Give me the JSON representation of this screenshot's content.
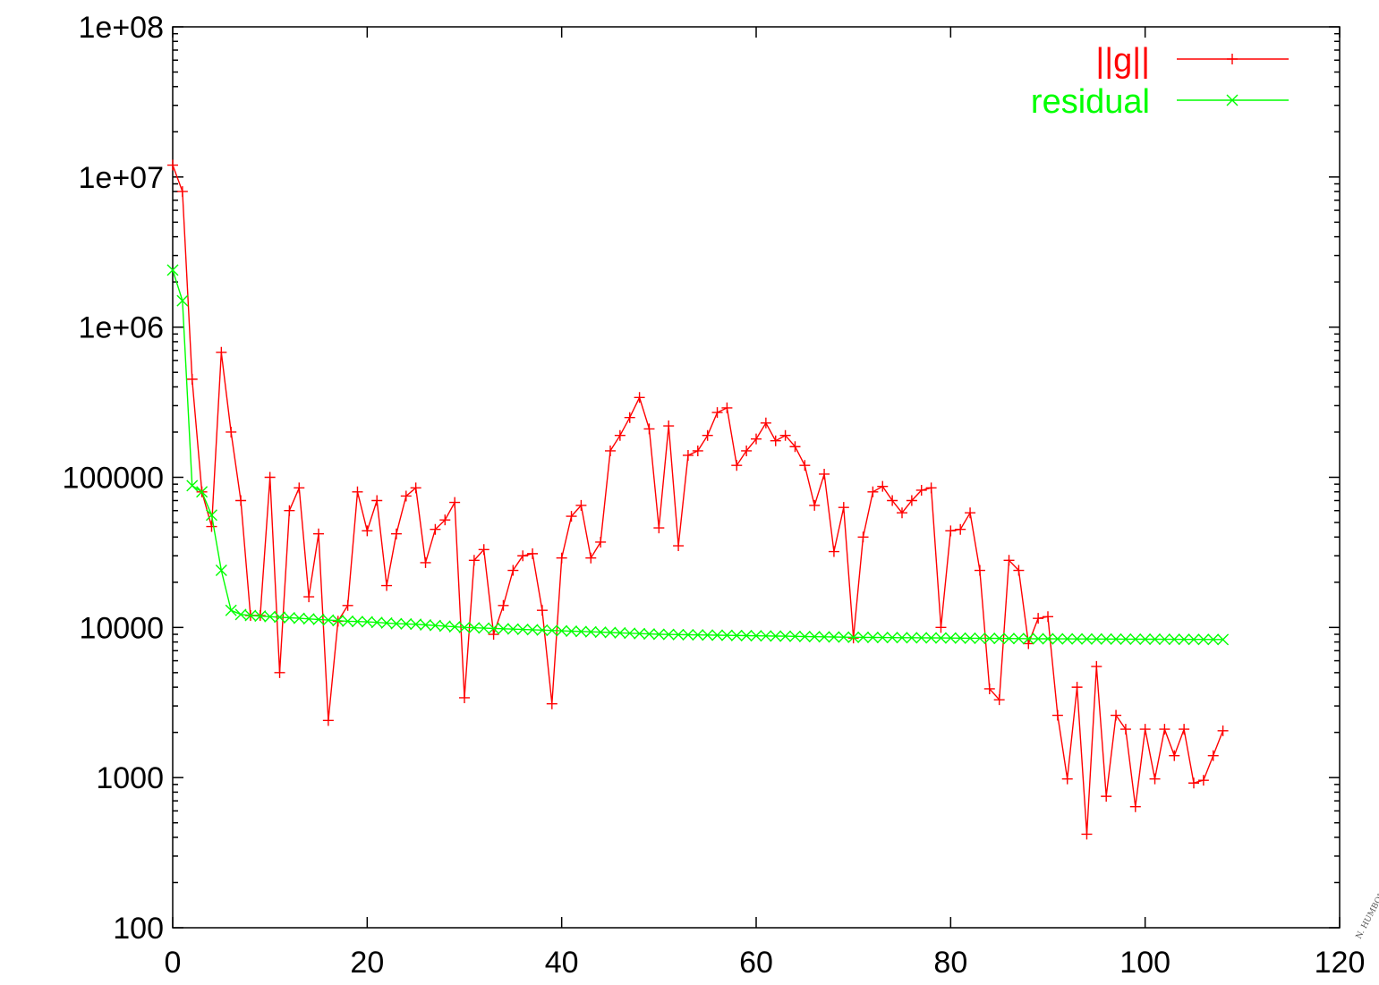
{
  "chart_data": {
    "type": "line",
    "title": "",
    "xlabel": "",
    "ylabel": "",
    "xlim": [
      0,
      120
    ],
    "ylim": [
      100,
      100000000
    ],
    "yscale": "log",
    "grid": false,
    "legend_position": "top-right",
    "x_ticks": [
      "0",
      "20",
      "40",
      "60",
      "80",
      "100",
      "120"
    ],
    "y_ticks": [
      "100",
      "1000",
      "10000",
      "100000",
      "1e+06",
      "1e+07",
      "1e+08"
    ],
    "series": [
      {
        "name": "||g||",
        "color": "#ff0000",
        "marker": "plus",
        "x": [
          0,
          1,
          2,
          3,
          4,
          5,
          6,
          7,
          8,
          9,
          10,
          11,
          12,
          13,
          14,
          15,
          16,
          17,
          18,
          19,
          20,
          21,
          22,
          23,
          24,
          25,
          26,
          27,
          28,
          29,
          30,
          31,
          32,
          33,
          34,
          35,
          36,
          37,
          38,
          39,
          40,
          41,
          42,
          43,
          44,
          45,
          46,
          47,
          48,
          49,
          50,
          51,
          52,
          53,
          54,
          55,
          56,
          57,
          58,
          59,
          60,
          61,
          62,
          63,
          64,
          65,
          66,
          67,
          68,
          69,
          70,
          71,
          72,
          73,
          74,
          75,
          76,
          77,
          78,
          79,
          80,
          81,
          82,
          83,
          84,
          85,
          86,
          87,
          88,
          89,
          90,
          91,
          92,
          93,
          94,
          95,
          96,
          97,
          98,
          99,
          100,
          101,
          102,
          103,
          104,
          105,
          106,
          107,
          108
        ],
        "y": [
          12000000,
          8000000,
          450000,
          80000,
          47000,
          680000,
          200000,
          70000,
          12000,
          12000,
          100000,
          5000,
          60000,
          85000,
          16000,
          42000,
          2400,
          11000,
          14000,
          80000,
          44000,
          70000,
          19000,
          42000,
          75000,
          85000,
          27000,
          45000,
          52000,
          68000,
          3400,
          28000,
          33000,
          9000,
          14000,
          24000,
          30000,
          31000,
          13000,
          3100,
          29000,
          55000,
          65000,
          29000,
          37000,
          150000,
          190000,
          250000,
          340000,
          210000,
          46000,
          220000,
          35000,
          140000,
          150000,
          190000,
          270000,
          290000,
          120000,
          150000,
          180000,
          230000,
          175000,
          190000,
          160000,
          120000,
          65000,
          105000,
          32000,
          63000,
          8500,
          40000,
          80000,
          87000,
          70000,
          58000,
          70000,
          82000,
          85000,
          10000,
          44000,
          45000,
          58000,
          24000,
          3900,
          3300,
          28000,
          24000,
          7800,
          11500,
          11800,
          2600,
          980,
          4000,
          420,
          5500,
          750,
          2600,
          2100,
          640,
          2100,
          980,
          2100,
          1400,
          2100,
          920,
          960,
          1400,
          2050
        ]
      },
      {
        "name": "residual",
        "color": "#00ff00",
        "marker": "x",
        "x": [
          0,
          1,
          2,
          3,
          4,
          5,
          6,
          7,
          8,
          9,
          10,
          11,
          12,
          13,
          14,
          15,
          16,
          17,
          18,
          19,
          20,
          21,
          22,
          23,
          24,
          25,
          26,
          27,
          28,
          29,
          30,
          31,
          32,
          33,
          34,
          35,
          36,
          37,
          38,
          39,
          40,
          41,
          42,
          43,
          44,
          45,
          46,
          47,
          48,
          49,
          50,
          51,
          52,
          53,
          54,
          55,
          56,
          57,
          58,
          59,
          60,
          61,
          62,
          63,
          64,
          65,
          66,
          67,
          68,
          69,
          70,
          71,
          72,
          73,
          74,
          75,
          76,
          77,
          78,
          79,
          80,
          81,
          82,
          83,
          84,
          85,
          86,
          87,
          88,
          89,
          90,
          91,
          92,
          93,
          94,
          95,
          96,
          97,
          98,
          99,
          100,
          101,
          102,
          103,
          104,
          105,
          106,
          107,
          108
        ],
        "y": [
          2400000,
          1500000,
          88000,
          80000,
          56000,
          24000,
          13000,
          12200,
          12000,
          11900,
          11800,
          11700,
          11600,
          11500,
          11400,
          11300,
          11200,
          11100,
          11000,
          10950,
          10900,
          10800,
          10700,
          10600,
          10550,
          10500,
          10400,
          10300,
          10200,
          10100,
          10000,
          9950,
          9900,
          9850,
          9800,
          9750,
          9700,
          9650,
          9600,
          9550,
          9500,
          9450,
          9400,
          9350,
          9300,
          9250,
          9200,
          9150,
          9100,
          9050,
          9000,
          8980,
          8960,
          8940,
          8920,
          8900,
          8880,
          8860,
          8840,
          8820,
          8800,
          8780,
          8760,
          8740,
          8720,
          8700,
          8680,
          8660,
          8640,
          8620,
          8600,
          8590,
          8580,
          8570,
          8560,
          8550,
          8540,
          8530,
          8520,
          8510,
          8500,
          8490,
          8480,
          8470,
          8460,
          8450,
          8440,
          8430,
          8420,
          8410,
          8400,
          8395,
          8390,
          8385,
          8380,
          8375,
          8370,
          8365,
          8360,
          8355,
          8350,
          8345,
          8340,
          8335,
          8330,
          8325,
          8320,
          8315,
          8310
        ]
      }
    ]
  },
  "watermark": "N. HUMBOLDT"
}
